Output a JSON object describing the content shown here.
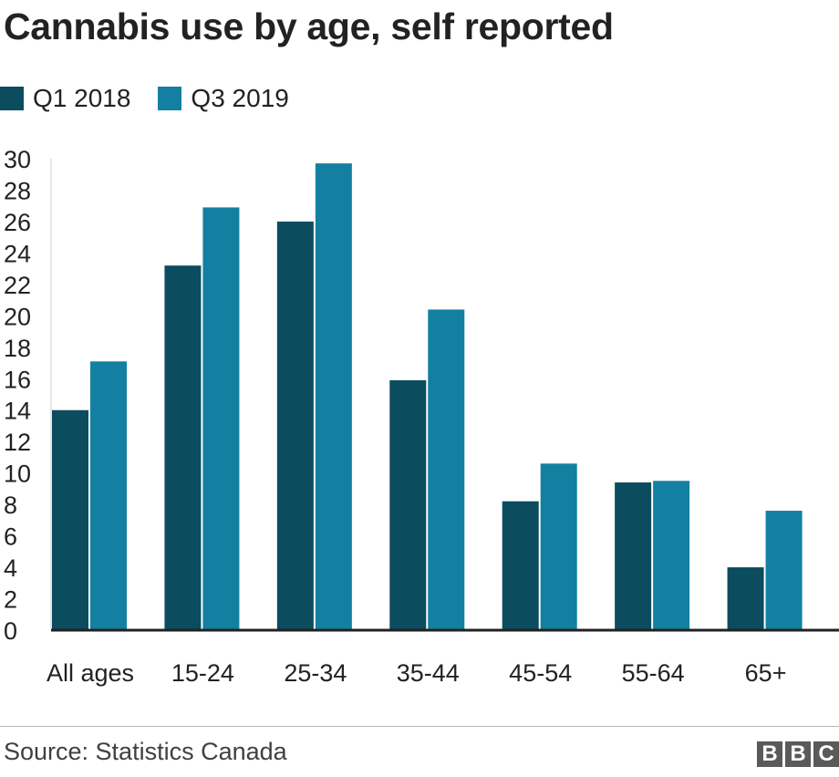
{
  "title": "Cannabis use by age, self reported",
  "legend": [
    {
      "label": "Q1 2018",
      "color": "#0b4c5f"
    },
    {
      "label": "Q3 2019",
      "color": "#1380a1"
    }
  ],
  "chart_data": {
    "type": "bar",
    "title": "Cannabis use by age, self reported",
    "xlabel": "",
    "ylabel": "",
    "categories": [
      "All ages",
      "15-24",
      "25-34",
      "35-44",
      "45-54",
      "55-64",
      "65+"
    ],
    "series": [
      {
        "name": "Q1 2018",
        "color": "#0b4c5f",
        "values": [
          14,
          23.2,
          26,
          15.9,
          8.2,
          9.4,
          4
        ]
      },
      {
        "name": "Q3 2019",
        "color": "#1380a1",
        "values": [
          17.1,
          26.9,
          29.7,
          20.4,
          10.6,
          9.5,
          7.6
        ]
      }
    ],
    "ylim": [
      0,
      30
    ],
    "yticks": [
      0,
      2,
      4,
      6,
      8,
      10,
      12,
      14,
      16,
      18,
      20,
      22,
      24,
      26,
      28,
      30
    ],
    "legend_position": "top-left",
    "grid": false
  },
  "footer": {
    "source": "Source: Statistics Canada",
    "logo_letters": [
      "B",
      "B",
      "C"
    ]
  }
}
